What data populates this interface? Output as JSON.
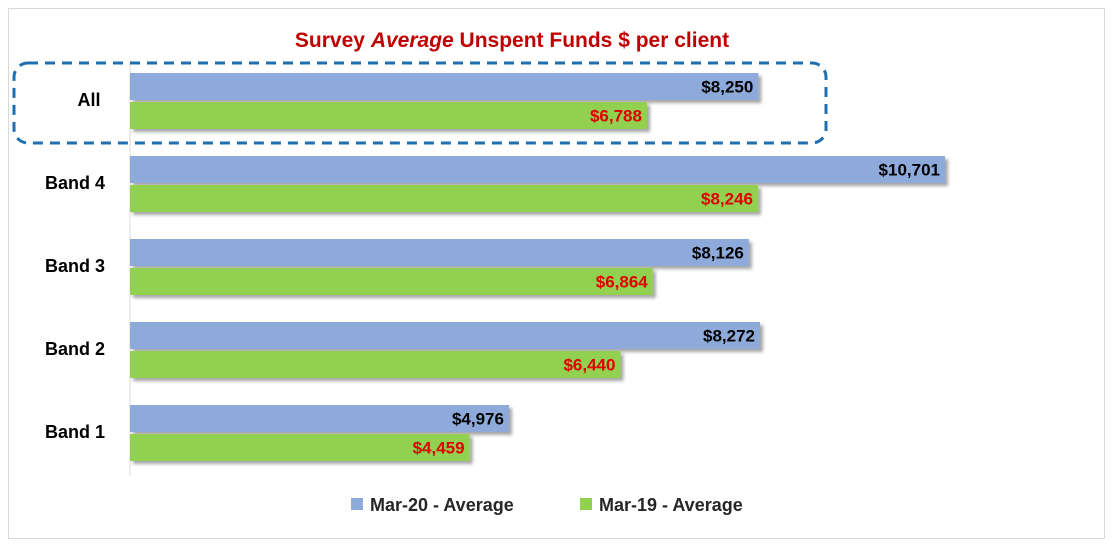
{
  "chart_data": {
    "type": "bar",
    "orientation": "horizontal",
    "title_parts": [
      "Survey ",
      "Average",
      " Unspent Funds $ per client"
    ],
    "categories": [
      "All",
      "Band 4",
      "Band 3",
      "Band 2",
      "Band 1"
    ],
    "series": [
      {
        "name": "Mar-20 - Average",
        "color": "#8eaadb",
        "label_color": "#000000",
        "values": [
          8250,
          10701,
          8126,
          8272,
          4976
        ],
        "labels": [
          "$8,250",
          "$10,701",
          "$8,126",
          "$8,272",
          "$4,976"
        ]
      },
      {
        "name": "Mar-19 - Average",
        "color": "#92d050",
        "label_color": "#e00000",
        "values": [
          6788,
          8246,
          6864,
          6440,
          4459
        ],
        "labels": [
          "$6,788",
          "$8,246",
          "$6,864",
          "$6,440",
          "$4,459"
        ]
      }
    ],
    "highlight": {
      "category": "All",
      "style": "dashed-box",
      "color": "#1f6fb0"
    },
    "xlim": [
      0,
      12000
    ],
    "grid": false,
    "legend": "bottom-center",
    "title_color": "#c00000"
  }
}
